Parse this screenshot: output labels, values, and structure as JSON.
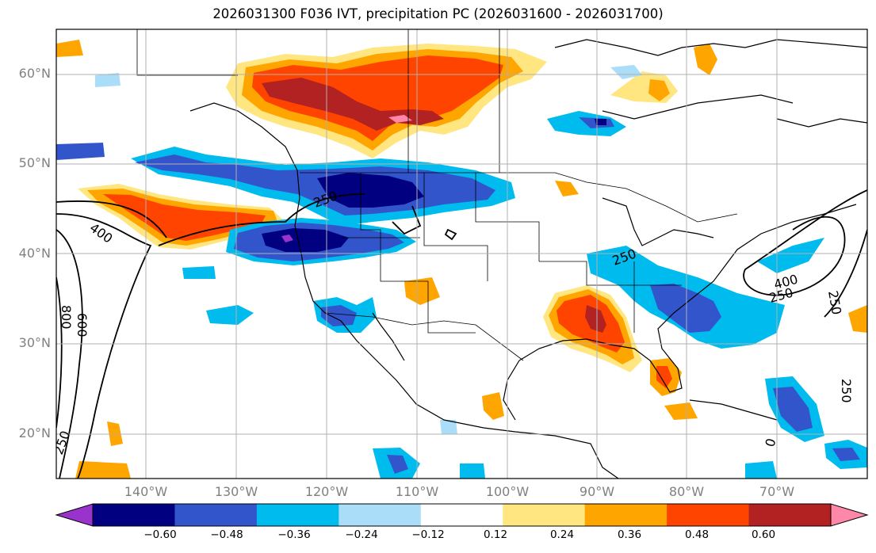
{
  "title": "2026031300 F036 IVT, precipitation PC (2026031600 - 2026031700)",
  "lat_labels": [
    "60°N",
    "50°N",
    "40°N",
    "30°N",
    "20°N"
  ],
  "lon_labels": [
    "140°W",
    "130°W",
    "120°W",
    "110°W",
    "100°W",
    "90°W",
    "80°W",
    "70°W"
  ],
  "colorbar": {
    "ticks": [
      "−0.60",
      "−0.48",
      "−0.36",
      "−0.24",
      "−0.12",
      "0.12",
      "0.24",
      "0.36",
      "0.48",
      "0.60"
    ],
    "colors": [
      "#9933cc",
      "#000080",
      "#3355cc",
      "#00bbee",
      "#aaddf8",
      "#ffffff",
      "#ffe680",
      "#ffa500",
      "#ff4400",
      "#b22222",
      "#ff88aa"
    ]
  },
  "contour_labels": [
    "250",
    "400",
    "800",
    "600",
    "250",
    "250",
    "400",
    "250",
    "250",
    "250",
    "0"
  ]
}
